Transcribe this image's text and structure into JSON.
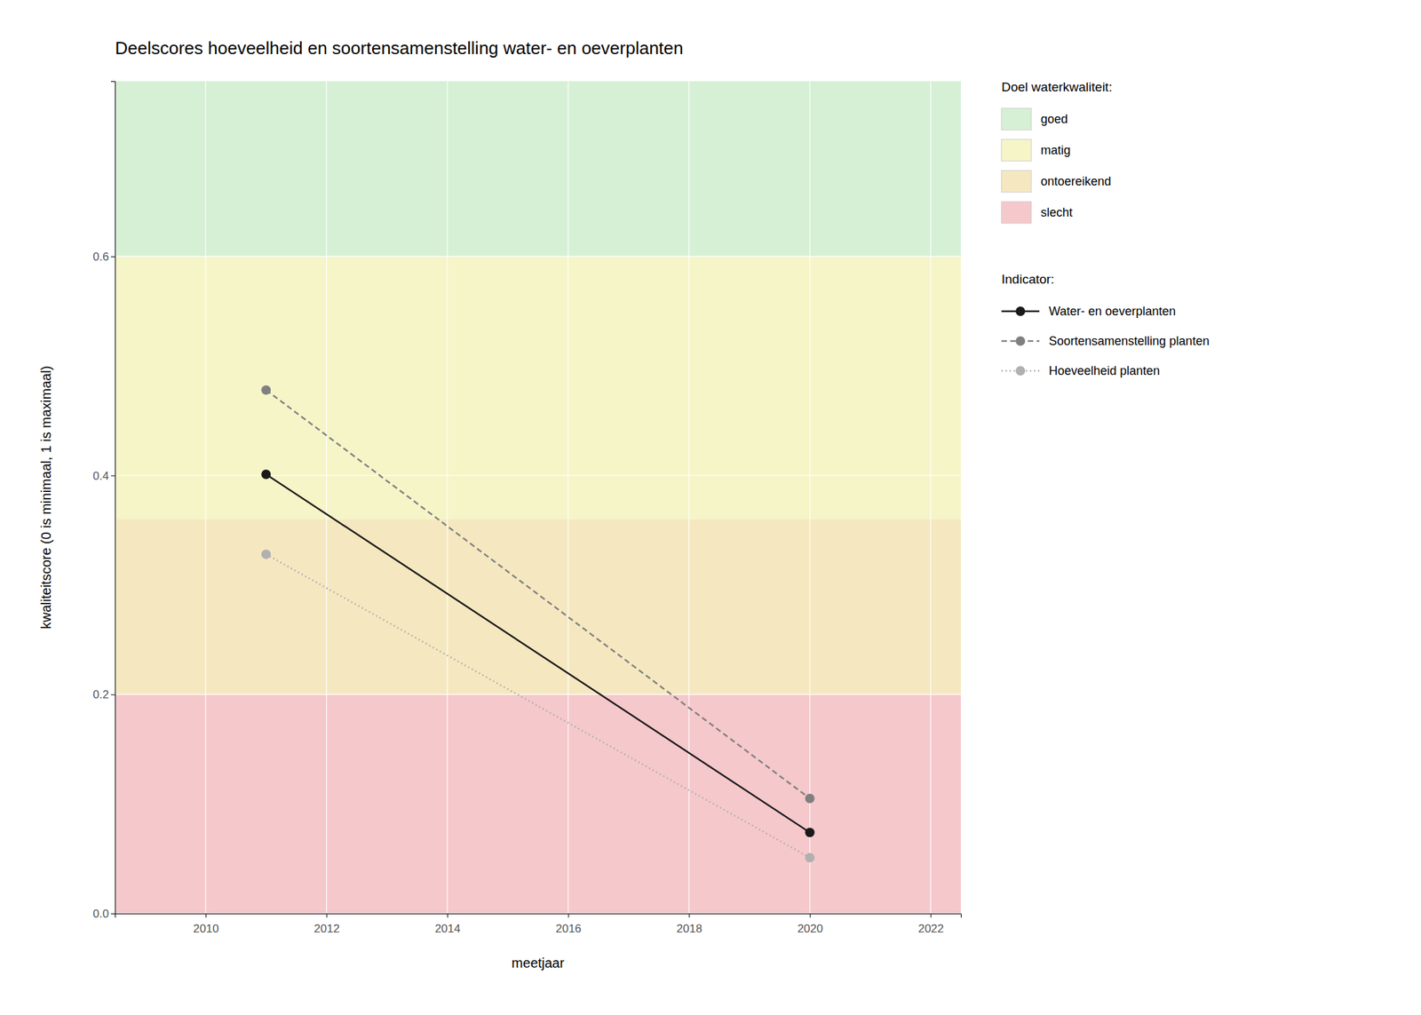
{
  "chart_data": {
    "type": "line",
    "title": "Deelscores hoeveelheid en soortensamenstelling water- en oeverplanten",
    "x_label": "meetjaar",
    "y_label": "kwaliteitscore (0 is minimaal, 1 is maximaal)",
    "xlim": [
      2008.5,
      2022.5
    ],
    "ylim": [
      0.0,
      0.76
    ],
    "xticks": [
      2010,
      2012,
      2014,
      2016,
      2018,
      2020,
      2022
    ],
    "yticks": [
      {
        "value": 0.0,
        "label": "0.0"
      },
      0.2,
      0.4,
      0.6
    ],
    "grid": true,
    "legend": "right",
    "zone_legend_title": "Doel waterkwaliteit:",
    "series_legend_title": "Indicator:",
    "zones": [
      {
        "name": "goed",
        "ymin": 0.6,
        "ymax": 1.0,
        "color": "#d6f0d5"
      },
      {
        "name": "matig",
        "ymin": 0.36,
        "ymax": 0.6,
        "color": "#f5f5c8"
      },
      {
        "name": "ontoereikend",
        "ymin": 0.2,
        "ymax": 0.36,
        "color": "#f5e8c0"
      },
      {
        "name": "slecht",
        "ymin": 0.0,
        "ymax": 0.2,
        "color": "#f5c8cc"
      }
    ],
    "x": [
      2011,
      2020
    ],
    "series": [
      {
        "name": "Water- en oeverplanten",
        "color": "#1a1a1a",
        "line_style": "solid",
        "marker": "circle",
        "values": [
          0.401,
          0.074
        ]
      },
      {
        "name": "Soortensamenstelling planten",
        "color": "#808080",
        "line_style": "dashed",
        "marker": "circle",
        "values": [
          0.478,
          0.105
        ]
      },
      {
        "name": "Hoeveelheid planten",
        "color": "#b0b0b0",
        "line_style": "dotted",
        "marker": "circle",
        "values": [
          0.328,
          0.051
        ]
      }
    ]
  }
}
